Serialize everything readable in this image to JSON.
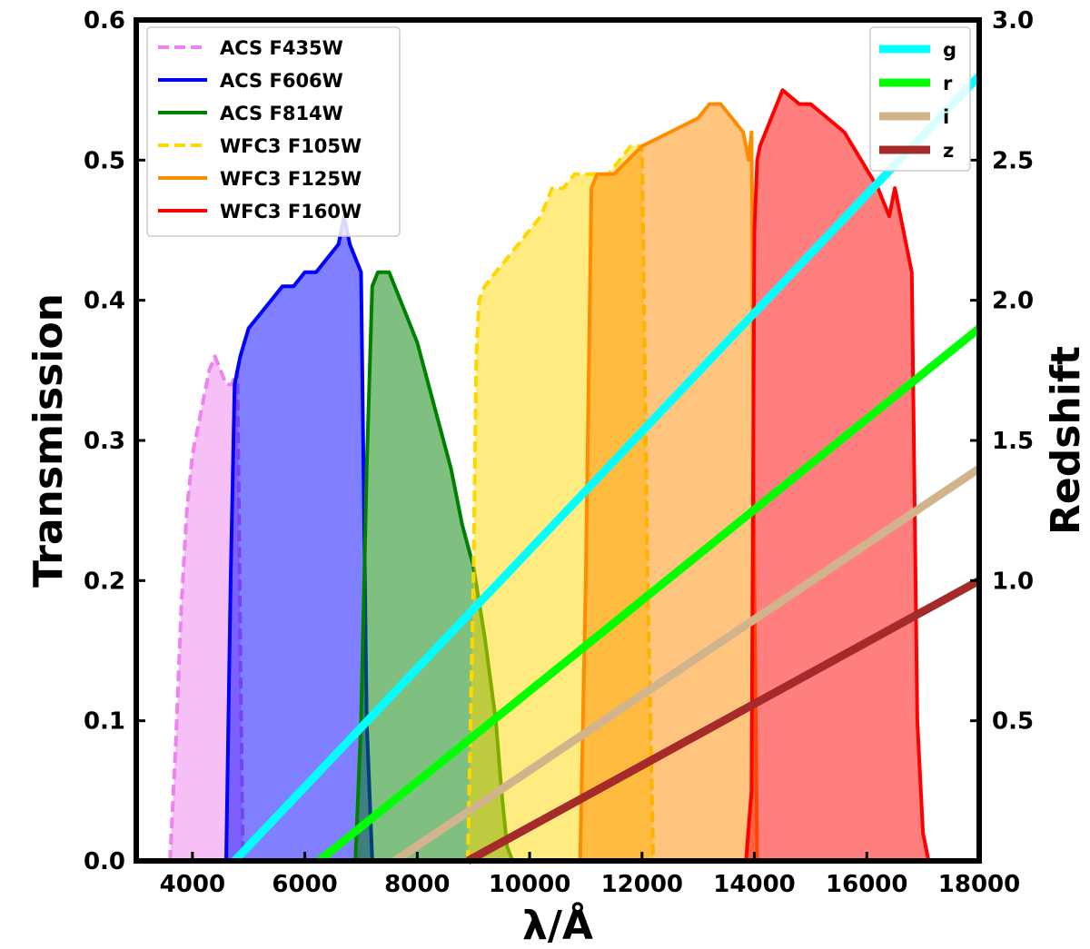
{
  "chart_data": {
    "type": "line",
    "xlabel": "λ/Å",
    "ylabel_left": "Transmission",
    "ylabel_right": "Redshift",
    "xlim": [
      3000,
      18000
    ],
    "ylim_left": [
      0,
      0.6
    ],
    "ylim_right": [
      0,
      3.0
    ],
    "x_ticks": [
      4000,
      6000,
      8000,
      10000,
      12000,
      14000,
      16000,
      18000
    ],
    "x_tick_labels": [
      "4000",
      "6000",
      "8000",
      "10000",
      "12000",
      "14000",
      "16000",
      "18000"
    ],
    "y_left_ticks": [
      0.0,
      0.1,
      0.2,
      0.3,
      0.4,
      0.5,
      0.6
    ],
    "y_left_tick_labels": [
      "0.0",
      "0.1",
      "0.2",
      "0.3",
      "0.4",
      "0.5",
      "0.6"
    ],
    "y_right_ticks": [
      0.5,
      1.0,
      1.5,
      2.0,
      2.5,
      3.0
    ],
    "y_right_tick_labels": [
      "0.5",
      "1.0",
      "1.5",
      "2.0",
      "2.5",
      "3.0"
    ],
    "filters": [
      {
        "name": "ACS F435W",
        "color": "#ee82ee",
        "fill": "#ee82ee",
        "dashed": true,
        "x": [
          3600,
          3700,
          3800,
          3900,
          4000,
          4100,
          4200,
          4300,
          4400,
          4500,
          4600,
          4700,
          4800,
          4860,
          4900
        ],
        "y": [
          0.0,
          0.08,
          0.18,
          0.25,
          0.29,
          0.31,
          0.33,
          0.35,
          0.36,
          0.35,
          0.34,
          0.34,
          0.35,
          0.12,
          0.0
        ]
      },
      {
        "name": "ACS F606W",
        "color": "#0000ff",
        "fill": "#0000ff",
        "dashed": false,
        "x": [
          4600,
          4680,
          4750,
          4850,
          5000,
          5200,
          5400,
          5600,
          5800,
          6000,
          6200,
          6400,
          6600,
          6700,
          6800,
          6900,
          7000,
          7100,
          7200
        ],
        "y": [
          0.0,
          0.2,
          0.34,
          0.36,
          0.38,
          0.39,
          0.4,
          0.41,
          0.41,
          0.42,
          0.42,
          0.43,
          0.44,
          0.46,
          0.44,
          0.43,
          0.42,
          0.1,
          0.0
        ]
      },
      {
        "name": "ACS F814W",
        "color": "#008000",
        "fill": "#008000",
        "dashed": false,
        "x": [
          6900,
          7000,
          7100,
          7200,
          7300,
          7400,
          7500,
          7600,
          7800,
          8000,
          8200,
          8400,
          8600,
          8800,
          9000,
          9200,
          9400,
          9500,
          9600,
          9700
        ],
        "y": [
          0.0,
          0.1,
          0.28,
          0.41,
          0.42,
          0.42,
          0.42,
          0.41,
          0.39,
          0.37,
          0.34,
          0.31,
          0.28,
          0.24,
          0.21,
          0.16,
          0.1,
          0.05,
          0.01,
          0.0
        ]
      },
      {
        "name": "WFC3 F105W",
        "color": "#ffd700",
        "fill": "#ffd700",
        "dashed": true,
        "x": [
          8900,
          9000,
          9050,
          9100,
          9200,
          9400,
          9600,
          9800,
          10000,
          10200,
          10400,
          10600,
          10800,
          11000,
          11200,
          11400,
          11600,
          11800,
          12000,
          12100,
          12200
        ],
        "y": [
          0.0,
          0.2,
          0.36,
          0.4,
          0.41,
          0.42,
          0.43,
          0.44,
          0.45,
          0.46,
          0.48,
          0.48,
          0.49,
          0.49,
          0.49,
          0.49,
          0.5,
          0.51,
          0.51,
          0.2,
          0.0
        ]
      },
      {
        "name": "WFC3 F125W",
        "color": "#ff8c00",
        "fill": "#ff8c00",
        "dashed": false,
        "x": [
          10900,
          11000,
          11100,
          11200,
          11500,
          12000,
          12500,
          13000,
          13200,
          13400,
          13600,
          13800,
          13900,
          13950,
          14000,
          14050
        ],
        "y": [
          0.0,
          0.2,
          0.48,
          0.49,
          0.49,
          0.51,
          0.52,
          0.53,
          0.54,
          0.54,
          0.53,
          0.52,
          0.5,
          0.52,
          0.2,
          0.0
        ]
      },
      {
        "name": "WFC3 F160W",
        "color": "#ff0000",
        "fill": "#ff0000",
        "dashed": false,
        "x": [
          13850,
          13950,
          14000,
          14050,
          14100,
          14300,
          14500,
          14800,
          15000,
          15300,
          15600,
          15900,
          16200,
          16400,
          16500,
          16600,
          16700,
          16800,
          16900,
          17000,
          17100
        ],
        "y": [
          0.0,
          0.05,
          0.45,
          0.5,
          0.51,
          0.53,
          0.55,
          0.54,
          0.54,
          0.53,
          0.52,
          0.5,
          0.48,
          0.46,
          0.48,
          0.46,
          0.44,
          0.42,
          0.1,
          0.02,
          0.0
        ]
      }
    ],
    "redshift_series": [
      {
        "name": "g",
        "color": "#00ffff",
        "x": [
          4750,
          18000
        ],
        "y": [
          0.0,
          2.8
        ]
      },
      {
        "name": "r",
        "color": "#00ff00",
        "x": [
          6250,
          18000
        ],
        "y": [
          0.0,
          1.9
        ]
      },
      {
        "name": "i",
        "color": "#d2b48c",
        "x": [
          7600,
          18000
        ],
        "y": [
          0.0,
          1.4
        ]
      },
      {
        "name": "z",
        "color": "#a52a2a",
        "x": [
          8900,
          18000
        ],
        "y": [
          0.0,
          1.0
        ]
      }
    ],
    "legend_left_placement": "top-left",
    "legend_right_placement": "top-right",
    "grid": false
  }
}
